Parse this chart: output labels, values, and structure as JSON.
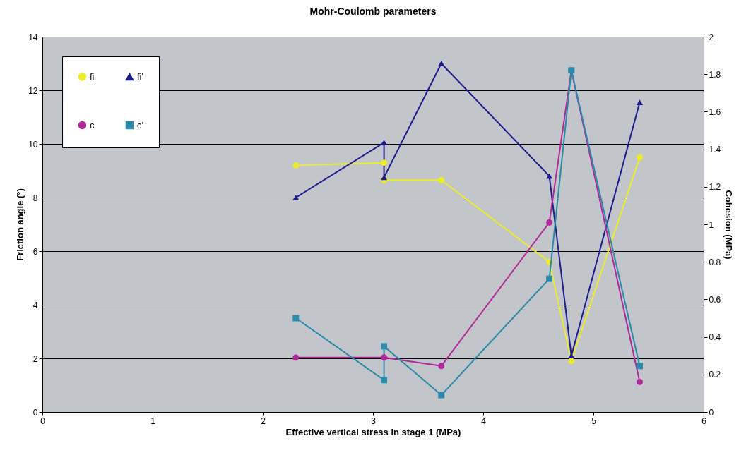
{
  "chart_data": {
    "type": "line",
    "title": "Mohr-Coulomb parameters",
    "xlabel": "Effective vertical stress in stage 1 (MPa)",
    "ylabel": "Friction angle (°)",
    "y2label": "Cohesion (MPa)",
    "xlim": [
      0,
      6
    ],
    "xticks": [
      0,
      1,
      2,
      3,
      4,
      5,
      6
    ],
    "ylim": [
      0,
      14
    ],
    "yticks": [
      0,
      2,
      4,
      6,
      8,
      10,
      12,
      14
    ],
    "y2lim": [
      0,
      2
    ],
    "y2ticks": [
      0,
      0.2,
      0.4,
      0.6,
      0.8,
      1,
      1.2,
      1.4,
      1.6,
      1.8,
      2
    ],
    "grid": "y",
    "legend": "top left",
    "series": [
      {
        "name": "fi",
        "color": "#ecec2a",
        "marker": "circle",
        "x": [
          2.3,
          3.1,
          3.1,
          3.62,
          4.6,
          4.8,
          5.42
        ],
        "values": [
          9.2,
          9.3,
          8.65,
          8.65,
          5.6,
          1.9,
          9.5
        ]
      },
      {
        "name": "fi'",
        "color": "#1c1c8e",
        "marker": "triangle",
        "x": [
          2.3,
          3.1,
          3.1,
          3.62,
          4.6,
          4.8,
          5.42
        ],
        "values": [
          8.0,
          10.05,
          8.75,
          13.0,
          8.8,
          2.1,
          11.55
        ]
      },
      {
        "name": "c",
        "color": "#b0289a",
        "marker": "circle",
        "axis": "y2",
        "x": [
          2.3,
          3.1,
          3.1,
          3.62,
          4.6,
          4.8,
          5.42
        ],
        "values": [
          0.29,
          0.29,
          0.29,
          0.245,
          1.01,
          1.82,
          0.16
        ]
      },
      {
        "name": "c'",
        "color": "#2a8aaa",
        "marker": "square",
        "axis": "y2",
        "x": [
          2.3,
          3.1,
          3.1,
          3.62,
          4.6,
          4.8,
          5.42
        ],
        "values": [
          0.5,
          0.17,
          0.35,
          0.09,
          0.71,
          1.82,
          0.245
        ]
      }
    ]
  }
}
